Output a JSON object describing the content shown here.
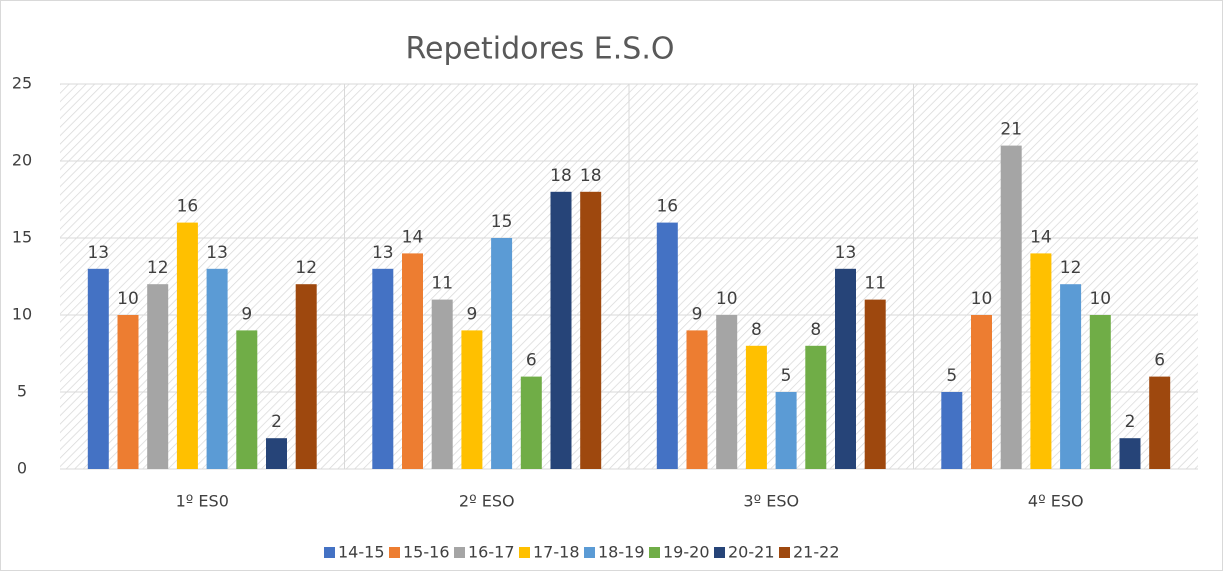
{
  "chart_data": {
    "type": "bar",
    "title": "Repetidores E.S.O",
    "categories": [
      "1º ES0",
      "2º ESO",
      "3º ESO",
      "4º ESO"
    ],
    "series": [
      {
        "name": "14-15",
        "color": "#4472c4",
        "values": [
          13,
          13,
          16,
          5
        ]
      },
      {
        "name": "15-16",
        "color": "#ed7d31",
        "values": [
          10,
          14,
          9,
          10
        ]
      },
      {
        "name": "16-17",
        "color": "#a5a5a5",
        "values": [
          12,
          11,
          10,
          21
        ]
      },
      {
        "name": "17-18",
        "color": "#ffc000",
        "values": [
          16,
          9,
          8,
          14
        ]
      },
      {
        "name": "18-19",
        "color": "#5b9bd5",
        "values": [
          13,
          15,
          5,
          12
        ]
      },
      {
        "name": "19-20",
        "color": "#70ad47",
        "values": [
          9,
          6,
          8,
          10
        ]
      },
      {
        "name": "20-21",
        "color": "#264478",
        "values": [
          2,
          18,
          13,
          2
        ]
      },
      {
        "name": "21-22",
        "color": "#9e480e",
        "values": [
          12,
          18,
          11,
          6
        ]
      }
    ],
    "ylim": [
      0,
      25
    ],
    "yticks": [
      0,
      5,
      10,
      15,
      20,
      25
    ],
    "grid": true,
    "legend": "bottom"
  }
}
